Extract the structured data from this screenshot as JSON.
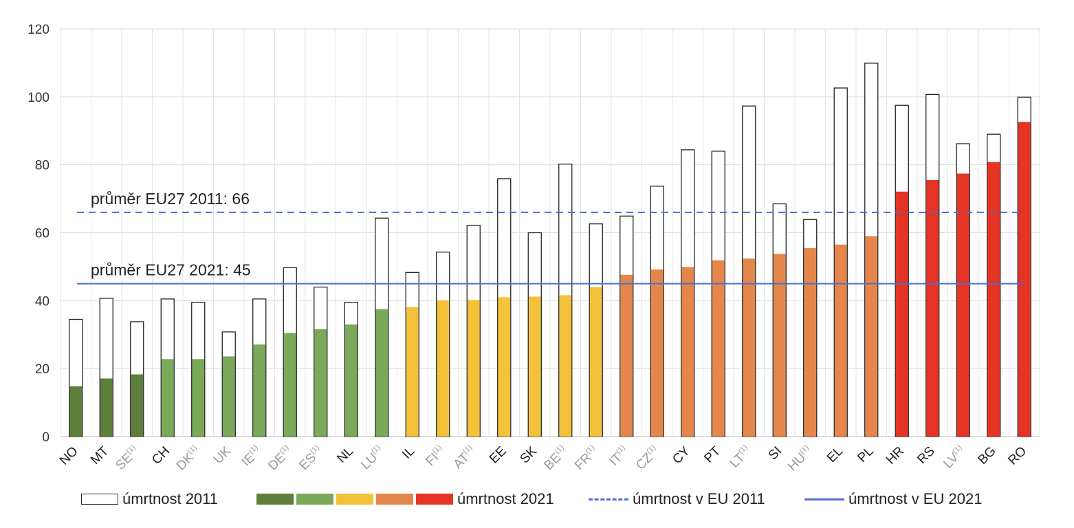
{
  "chart_data": {
    "type": "bar",
    "categories": [
      "NO",
      "MT",
      "SE",
      "CH",
      "DK",
      "UK",
      "IE",
      "DE",
      "ES",
      "NL",
      "LU",
      "IL",
      "FI",
      "AT",
      "EE",
      "SK",
      "BE",
      "FR",
      "IT",
      "CZ",
      "CY",
      "PT",
      "LT",
      "SI",
      "HU",
      "EL",
      "PL",
      "HR",
      "RS",
      "LV",
      "BG",
      "RO"
    ],
    "footnote_marks": [
      "",
      "",
      "(1)",
      "",
      "(1)",
      "",
      "(1)",
      "(1)",
      "(1)",
      "",
      "(1)",
      "",
      "(1)",
      "(1)",
      "",
      "",
      "(1)",
      "(1)",
      "(1)",
      "(1)",
      "",
      "",
      "(1)",
      "",
      "(1)",
      "",
      "",
      "",
      "",
      "(1)",
      "",
      ""
    ],
    "grey_labels": [
      false,
      false,
      true,
      false,
      true,
      true,
      true,
      true,
      true,
      false,
      true,
      false,
      true,
      true,
      false,
      false,
      true,
      true,
      true,
      true,
      false,
      false,
      true,
      false,
      true,
      false,
      false,
      false,
      false,
      true,
      false,
      false
    ],
    "series": [
      {
        "name": "úmrtnost 2011",
        "values": [
          34.5,
          40.7,
          33.8,
          40.5,
          39.5,
          30.8,
          40.5,
          49.7,
          44.0,
          39.5,
          64.3,
          48.3,
          54.3,
          62.2,
          75.9,
          60.0,
          80.2,
          62.6,
          64.9,
          73.7,
          84.4,
          84.0,
          97.3,
          68.5,
          63.9,
          102.6,
          109.9,
          97.5,
          100.7,
          86.2,
          89.0,
          99.9
        ]
      },
      {
        "name": "úmrtnost 2021",
        "values": [
          14.8,
          17.1,
          18.3,
          22.8,
          22.8,
          23.6,
          27.1,
          30.5,
          31.6,
          33.0,
          37.5,
          38.1,
          40.1,
          40.2,
          41.0,
          41.2,
          41.6,
          44.0,
          47.6,
          49.2,
          49.9,
          51.9,
          52.4,
          53.8,
          55.5,
          56.5,
          59.0,
          72.1,
          75.5,
          77.4,
          80.8,
          92.6
        ]
      }
    ],
    "colors_2021": [
      "#5e7f3b",
      "#5e7f3b",
      "#5e7f3b",
      "#7aa95a",
      "#7aa95a",
      "#7aa95a",
      "#7aa95a",
      "#7aa95a",
      "#7aa95a",
      "#7aa95a",
      "#7aa95a",
      "#f3c13a",
      "#f3c13a",
      "#f3c13a",
      "#f3c13a",
      "#f3c13a",
      "#f3c13a",
      "#f3c13a",
      "#e5874a",
      "#e5874a",
      "#e5874a",
      "#e5874a",
      "#e5874a",
      "#e5874a",
      "#e5874a",
      "#e5874a",
      "#e5874a",
      "#e63424",
      "#e63424",
      "#e63424",
      "#e63424",
      "#e63424"
    ],
    "reference_lines": [
      {
        "name": "úmrtnost v EU 2011",
        "value": 66,
        "style": "dashed",
        "color": "#4a6fd1",
        "annotation": "průměr EU27 2011: 66"
      },
      {
        "name": "úmrtnost v EU 2021",
        "value": 45,
        "style": "solid",
        "color": "#4a6fd1",
        "annotation": "průměr EU27 2021: 45"
      }
    ],
    "ylim": [
      0,
      120
    ],
    "yticks": [
      "0",
      "20",
      "40",
      "60",
      "80",
      "100",
      "120"
    ],
    "grid": true,
    "title": "",
    "xlabel": "",
    "ylabel": ""
  },
  "legend": {
    "item_2011": "úmrtnost 2011",
    "item_2021": "úmrtnost 2021",
    "item_eu_2011": "úmrtnost v EU 2011",
    "item_eu_2021": "úmrtnost v EU 2021",
    "swatch_colors": [
      "#5e7f3b",
      "#7aa95a",
      "#f3c13a",
      "#e5874a",
      "#e63424"
    ],
    "line_color": "#4a6fd1"
  }
}
